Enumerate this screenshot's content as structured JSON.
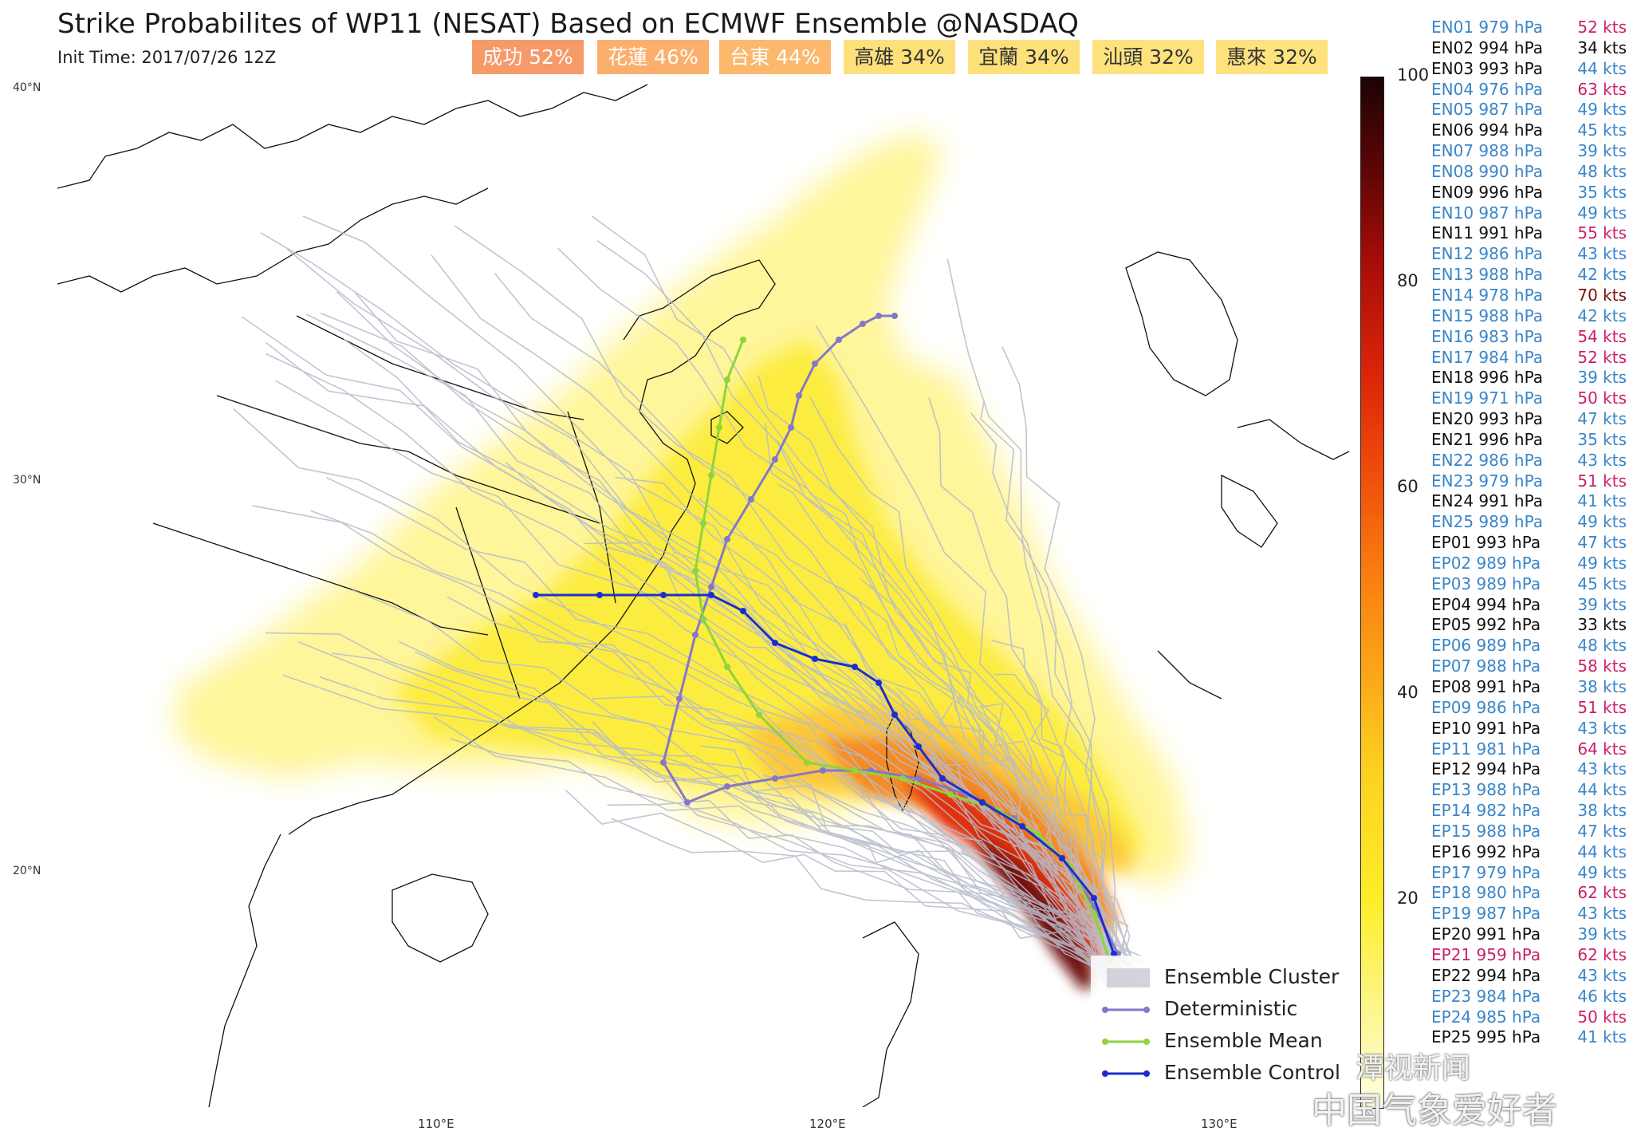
{
  "header": {
    "title": "Strike Probabilites of WP11 (NESAT) Based on ECMWF Ensemble @NASDAQ",
    "init_time": "Init Time: 2017/07/26 12Z"
  },
  "city_chips": [
    {
      "name": "成功",
      "pct": "52%",
      "color": "#f79a6a",
      "text": "#ffffff"
    },
    {
      "name": "花蓮",
      "pct": "46%",
      "color": "#fbaf6c",
      "text": "#ffffff"
    },
    {
      "name": "台東",
      "pct": "44%",
      "color": "#fcb86d",
      "text": "#ffffff"
    },
    {
      "name": "高雄",
      "pct": "34%",
      "color": "#fde07a",
      "text": "#333333"
    },
    {
      "name": "宜蘭",
      "pct": "34%",
      "color": "#fde07a",
      "text": "#333333"
    },
    {
      "name": "汕頭",
      "pct": "32%",
      "color": "#fde27d",
      "text": "#333333"
    },
    {
      "name": "惠來",
      "pct": "32%",
      "color": "#fde27d",
      "text": "#333333"
    }
  ],
  "map": {
    "lat_labels": [
      "40°N",
      "30°N",
      "20°N"
    ],
    "lon_labels": [
      "110°E",
      "120°E",
      "130°E"
    ]
  },
  "colorbar": {
    "ticks": [
      "100",
      "80",
      "60",
      "40",
      "20"
    ]
  },
  "members": [
    {
      "id": "EN01",
      "hpa": "979",
      "kts": "52",
      "c1": "#3a86c8",
      "c2": "#cc1f6b"
    },
    {
      "id": "EN02",
      "hpa": "994",
      "kts": "34",
      "c1": "#111111",
      "c2": "#111111"
    },
    {
      "id": "EN03",
      "hpa": "993",
      "kts": "44",
      "c1": "#111111",
      "c2": "#3a86c8"
    },
    {
      "id": "EN04",
      "hpa": "976",
      "kts": "63",
      "c1": "#3a86c8",
      "c2": "#cc1f6b"
    },
    {
      "id": "EN05",
      "hpa": "987",
      "kts": "49",
      "c1": "#3a86c8",
      "c2": "#3a86c8"
    },
    {
      "id": "EN06",
      "hpa": "994",
      "kts": "45",
      "c1": "#111111",
      "c2": "#3a86c8"
    },
    {
      "id": "EN07",
      "hpa": "988",
      "kts": "39",
      "c1": "#3a86c8",
      "c2": "#3a86c8"
    },
    {
      "id": "EN08",
      "hpa": "990",
      "kts": "48",
      "c1": "#3a86c8",
      "c2": "#3a86c8"
    },
    {
      "id": "EN09",
      "hpa": "996",
      "kts": "35",
      "c1": "#111111",
      "c2": "#3a86c8"
    },
    {
      "id": "EN10",
      "hpa": "987",
      "kts": "49",
      "c1": "#3a86c8",
      "c2": "#3a86c8"
    },
    {
      "id": "EN11",
      "hpa": "991",
      "kts": "55",
      "c1": "#111111",
      "c2": "#cc1f6b"
    },
    {
      "id": "EN12",
      "hpa": "986",
      "kts": "43",
      "c1": "#3a86c8",
      "c2": "#3a86c8"
    },
    {
      "id": "EN13",
      "hpa": "988",
      "kts": "42",
      "c1": "#3a86c8",
      "c2": "#3a86c8"
    },
    {
      "id": "EN14",
      "hpa": "978",
      "kts": "70",
      "c1": "#3a86c8",
      "c2": "#7a1010"
    },
    {
      "id": "EN15",
      "hpa": "988",
      "kts": "42",
      "c1": "#3a86c8",
      "c2": "#3a86c8"
    },
    {
      "id": "EN16",
      "hpa": "983",
      "kts": "54",
      "c1": "#3a86c8",
      "c2": "#cc1f6b"
    },
    {
      "id": "EN17",
      "hpa": "984",
      "kts": "52",
      "c1": "#3a86c8",
      "c2": "#cc1f6b"
    },
    {
      "id": "EN18",
      "hpa": "996",
      "kts": "39",
      "c1": "#111111",
      "c2": "#3a86c8"
    },
    {
      "id": "EN19",
      "hpa": "971",
      "kts": "50",
      "c1": "#3a86c8",
      "c2": "#cc1f6b"
    },
    {
      "id": "EN20",
      "hpa": "993",
      "kts": "47",
      "c1": "#111111",
      "c2": "#3a86c8"
    },
    {
      "id": "EN21",
      "hpa": "996",
      "kts": "35",
      "c1": "#111111",
      "c2": "#3a86c8"
    },
    {
      "id": "EN22",
      "hpa": "986",
      "kts": "43",
      "c1": "#3a86c8",
      "c2": "#3a86c8"
    },
    {
      "id": "EN23",
      "hpa": "979",
      "kts": "51",
      "c1": "#3a86c8",
      "c2": "#cc1f6b"
    },
    {
      "id": "EN24",
      "hpa": "991",
      "kts": "41",
      "c1": "#111111",
      "c2": "#3a86c8"
    },
    {
      "id": "EN25",
      "hpa": "989",
      "kts": "49",
      "c1": "#3a86c8",
      "c2": "#3a86c8"
    },
    {
      "id": "EP01",
      "hpa": "993",
      "kts": "47",
      "c1": "#111111",
      "c2": "#3a86c8"
    },
    {
      "id": "EP02",
      "hpa": "989",
      "kts": "49",
      "c1": "#3a86c8",
      "c2": "#3a86c8"
    },
    {
      "id": "EP03",
      "hpa": "989",
      "kts": "45",
      "c1": "#3a86c8",
      "c2": "#3a86c8"
    },
    {
      "id": "EP04",
      "hpa": "994",
      "kts": "39",
      "c1": "#111111",
      "c2": "#3a86c8"
    },
    {
      "id": "EP05",
      "hpa": "992",
      "kts": "33",
      "c1": "#111111",
      "c2": "#111111"
    },
    {
      "id": "EP06",
      "hpa": "989",
      "kts": "48",
      "c1": "#3a86c8",
      "c2": "#3a86c8"
    },
    {
      "id": "EP07",
      "hpa": "988",
      "kts": "58",
      "c1": "#3a86c8",
      "c2": "#cc1f6b"
    },
    {
      "id": "EP08",
      "hpa": "991",
      "kts": "38",
      "c1": "#111111",
      "c2": "#3a86c8"
    },
    {
      "id": "EP09",
      "hpa": "986",
      "kts": "51",
      "c1": "#3a86c8",
      "c2": "#cc1f6b"
    },
    {
      "id": "EP10",
      "hpa": "991",
      "kts": "43",
      "c1": "#111111",
      "c2": "#3a86c8"
    },
    {
      "id": "EP11",
      "hpa": "981",
      "kts": "64",
      "c1": "#3a86c8",
      "c2": "#cc1f6b"
    },
    {
      "id": "EP12",
      "hpa": "994",
      "kts": "43",
      "c1": "#111111",
      "c2": "#3a86c8"
    },
    {
      "id": "EP13",
      "hpa": "988",
      "kts": "44",
      "c1": "#3a86c8",
      "c2": "#3a86c8"
    },
    {
      "id": "EP14",
      "hpa": "982",
      "kts": "38",
      "c1": "#3a86c8",
      "c2": "#3a86c8"
    },
    {
      "id": "EP15",
      "hpa": "988",
      "kts": "47",
      "c1": "#3a86c8",
      "c2": "#3a86c8"
    },
    {
      "id": "EP16",
      "hpa": "992",
      "kts": "44",
      "c1": "#111111",
      "c2": "#3a86c8"
    },
    {
      "id": "EP17",
      "hpa": "979",
      "kts": "49",
      "c1": "#3a86c8",
      "c2": "#3a86c8"
    },
    {
      "id": "EP18",
      "hpa": "980",
      "kts": "62",
      "c1": "#3a86c8",
      "c2": "#cc1f6b"
    },
    {
      "id": "EP19",
      "hpa": "987",
      "kts": "43",
      "c1": "#3a86c8",
      "c2": "#3a86c8"
    },
    {
      "id": "EP20",
      "hpa": "991",
      "kts": "39",
      "c1": "#111111",
      "c2": "#3a86c8"
    },
    {
      "id": "EP21",
      "hpa": "959",
      "kts": "62",
      "c1": "#cc1f6b",
      "c2": "#cc1f6b"
    },
    {
      "id": "EP22",
      "hpa": "994",
      "kts": "43",
      "c1": "#111111",
      "c2": "#3a86c8"
    },
    {
      "id": "EP23",
      "hpa": "984",
      "kts": "46",
      "c1": "#3a86c8",
      "c2": "#3a86c8"
    },
    {
      "id": "EP24",
      "hpa": "985",
      "kts": "50",
      "c1": "#3a86c8",
      "c2": "#cc1f6b"
    },
    {
      "id": "EP25",
      "hpa": "995",
      "kts": "41",
      "c1": "#111111",
      "c2": "#3a86c8"
    }
  ],
  "member_units": {
    "pressure": "hPa",
    "wind": "kts"
  },
  "legend": [
    {
      "label": "Ensemble Cluster",
      "color": "#c8c8d2",
      "kind": "cluster"
    },
    {
      "label": "Deterministic",
      "color": "#8577c9",
      "kind": "line"
    },
    {
      "label": "Ensemble Mean",
      "color": "#8fd43c",
      "kind": "line"
    },
    {
      "label": "Ensemble Control",
      "color": "#1a2fcf",
      "kind": "line"
    }
  ],
  "watermark": {
    "line1": "潭视新闻",
    "line2": "中国气象爱好者"
  }
}
